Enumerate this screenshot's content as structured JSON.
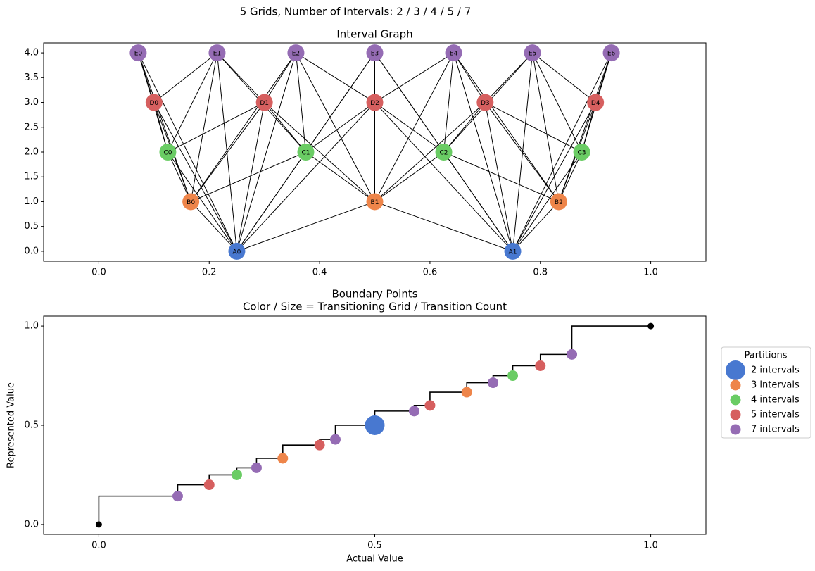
{
  "title": "5 Grids, Number of Intervals: 2 / 3 / 4 / 5 / 7",
  "chart_data": [
    {
      "type": "graph",
      "title": "Interval Graph",
      "xlim": [
        -0.1,
        1.1
      ],
      "xticks": [
        {
          "value": 0,
          "label": "0.0"
        },
        {
          "value": 0.2,
          "label": "0.2"
        },
        {
          "value": 0.4,
          "label": "0.4"
        },
        {
          "value": 0.6,
          "label": "0.6"
        },
        {
          "value": 0.8,
          "label": "0.8"
        },
        {
          "value": 1,
          "label": "1.0"
        }
      ],
      "ylim": [
        -0.2,
        4.2
      ],
      "yticks": [
        {
          "value": 0,
          "label": "0.0"
        },
        0.5,
        {
          "value": 1,
          "label": "1.0"
        },
        1.5,
        {
          "value": 2,
          "label": "2.0"
        },
        2.5,
        {
          "value": 3,
          "label": "3.0"
        },
        3.5,
        {
          "value": 4,
          "label": "4.0"
        }
      ],
      "nodes": [
        {
          "label": "A0",
          "x": 0.25,
          "y": 0,
          "color": "#4878d0"
        },
        {
          "label": "A1",
          "x": 0.75,
          "y": 0,
          "color": "#4878d0"
        },
        {
          "label": "B0",
          "x": 0.1667,
          "y": 1,
          "color": "#ee854a"
        },
        {
          "label": "B1",
          "x": 0.5,
          "y": 1,
          "color": "#ee854a"
        },
        {
          "label": "B2",
          "x": 0.8333,
          "y": 1,
          "color": "#ee854a"
        },
        {
          "label": "C0",
          "x": 0.125,
          "y": 2,
          "color": "#6acc64"
        },
        {
          "label": "C1",
          "x": 0.375,
          "y": 2,
          "color": "#6acc64"
        },
        {
          "label": "C2",
          "x": 0.625,
          "y": 2,
          "color": "#6acc64"
        },
        {
          "label": "C3",
          "x": 0.875,
          "y": 2,
          "color": "#6acc64"
        },
        {
          "label": "D0",
          "x": 0.1,
          "y": 3,
          "color": "#d65f5f"
        },
        {
          "label": "D1",
          "x": 0.3,
          "y": 3,
          "color": "#d65f5f"
        },
        {
          "label": "D2",
          "x": 0.5,
          "y": 3,
          "color": "#d65f5f"
        },
        {
          "label": "D3",
          "x": 0.7,
          "y": 3,
          "color": "#d65f5f"
        },
        {
          "label": "D4",
          "x": 0.9,
          "y": 3,
          "color": "#d65f5f"
        },
        {
          "label": "E0",
          "x": 0.0714,
          "y": 4,
          "color": "#956cb4"
        },
        {
          "label": "E1",
          "x": 0.2143,
          "y": 4,
          "color": "#956cb4"
        },
        {
          "label": "E2",
          "x": 0.3571,
          "y": 4,
          "color": "#956cb4"
        },
        {
          "label": "E3",
          "x": 0.5,
          "y": 4,
          "color": "#956cb4"
        },
        {
          "label": "E4",
          "x": 0.6429,
          "y": 4,
          "color": "#956cb4"
        },
        {
          "label": "E5",
          "x": 0.7857,
          "y": 4,
          "color": "#956cb4"
        },
        {
          "label": "E6",
          "x": 0.9286,
          "y": 4,
          "color": "#956cb4"
        }
      ],
      "edges": [
        [
          "A0",
          "B0"
        ],
        [
          "A0",
          "B1"
        ],
        [
          "A0",
          "C0"
        ],
        [
          "A0",
          "C1"
        ],
        [
          "A0",
          "D0"
        ],
        [
          "A0",
          "D1"
        ],
        [
          "A0",
          "D2"
        ],
        [
          "A0",
          "E0"
        ],
        [
          "A0",
          "E1"
        ],
        [
          "A0",
          "E2"
        ],
        [
          "A0",
          "E3"
        ],
        [
          "A1",
          "B1"
        ],
        [
          "A1",
          "B2"
        ],
        [
          "A1",
          "C2"
        ],
        [
          "A1",
          "C3"
        ],
        [
          "A1",
          "D2"
        ],
        [
          "A1",
          "D3"
        ],
        [
          "A1",
          "D4"
        ],
        [
          "A1",
          "E3"
        ],
        [
          "A1",
          "E4"
        ],
        [
          "A1",
          "E5"
        ],
        [
          "A1",
          "E6"
        ],
        [
          "B0",
          "C0"
        ],
        [
          "B0",
          "C1"
        ],
        [
          "B0",
          "D0"
        ],
        [
          "B0",
          "D1"
        ],
        [
          "B0",
          "E0"
        ],
        [
          "B0",
          "E1"
        ],
        [
          "B0",
          "E2"
        ],
        [
          "B1",
          "C1"
        ],
        [
          "B1",
          "C2"
        ],
        [
          "B1",
          "D1"
        ],
        [
          "B1",
          "D2"
        ],
        [
          "B1",
          "D3"
        ],
        [
          "B1",
          "E2"
        ],
        [
          "B1",
          "E3"
        ],
        [
          "B1",
          "E4"
        ],
        [
          "B2",
          "C2"
        ],
        [
          "B2",
          "C3"
        ],
        [
          "B2",
          "D3"
        ],
        [
          "B2",
          "D4"
        ],
        [
          "B2",
          "E4"
        ],
        [
          "B2",
          "E5"
        ],
        [
          "B2",
          "E6"
        ],
        [
          "C0",
          "D0"
        ],
        [
          "C0",
          "D1"
        ],
        [
          "C0",
          "E0"
        ],
        [
          "C0",
          "E1"
        ],
        [
          "C1",
          "D1"
        ],
        [
          "C1",
          "D2"
        ],
        [
          "C1",
          "E1"
        ],
        [
          "C1",
          "E2"
        ],
        [
          "C1",
          "E3"
        ],
        [
          "C2",
          "D2"
        ],
        [
          "C2",
          "D3"
        ],
        [
          "C2",
          "E3"
        ],
        [
          "C2",
          "E4"
        ],
        [
          "C2",
          "E5"
        ],
        [
          "C3",
          "D3"
        ],
        [
          "C3",
          "D4"
        ],
        [
          "C3",
          "E5"
        ],
        [
          "C3",
          "E6"
        ],
        [
          "D0",
          "E0"
        ],
        [
          "D0",
          "E1"
        ],
        [
          "D1",
          "E1"
        ],
        [
          "D1",
          "E2"
        ],
        [
          "D2",
          "E2"
        ],
        [
          "D2",
          "E3"
        ],
        [
          "D2",
          "E4"
        ],
        [
          "D3",
          "E4"
        ],
        [
          "D3",
          "E5"
        ],
        [
          "D4",
          "E5"
        ],
        [
          "D4",
          "E6"
        ]
      ]
    },
    {
      "type": "scatter",
      "title": "Boundary Points",
      "subtitle": "Color / Size = Transitioning Grid / Transition Count",
      "xlabel": "Actual Value",
      "ylabel": "Represented Value",
      "xlim": [
        -0.1,
        1.1
      ],
      "xticks": [
        {
          "value": 0,
          "label": "0.0"
        },
        0.5,
        {
          "value": 1,
          "label": "1.0"
        }
      ],
      "ylim": [
        -0.05,
        1.05
      ],
      "yticks": [
        {
          "value": 0,
          "label": "0.0"
        },
        0.5,
        {
          "value": 1,
          "label": "1.0"
        }
      ],
      "legend": "outside right",
      "legend_title": "Partitions",
      "series": [
        {
          "style": "step",
          "end_markers": true,
          "color": "#000000",
          "x": [
            0,
            0.1429,
            0.2,
            0.25,
            0.2857,
            0.3333,
            0.4,
            0.4286,
            0.5,
            0.5714,
            0.6,
            0.6667,
            0.7143,
            0.75,
            0.8,
            0.8571,
            1
          ],
          "values": [
            0,
            0.1429,
            0.2,
            0.25,
            0.2857,
            0.3333,
            0.4,
            0.4286,
            0.5,
            0.5714,
            0.6,
            0.6667,
            0.7143,
            0.75,
            0.8,
            0.8571,
            1
          ]
        },
        {
          "name": "2 intervals",
          "color": "#4878d0",
          "x": [
            0.5
          ],
          "values": [
            0.5
          ],
          "sizes": [
            2
          ]
        },
        {
          "name": "3 intervals",
          "color": "#ee854a",
          "x": [
            0.3333,
            0.6667
          ],
          "values": [
            0.3333,
            0.6667
          ],
          "sizes": [
            1,
            1
          ]
        },
        {
          "name": "4 intervals",
          "color": "#6acc64",
          "x": [
            0.25,
            0.75
          ],
          "values": [
            0.25,
            0.75
          ],
          "sizes": [
            1,
            1
          ]
        },
        {
          "name": "5 intervals",
          "color": "#d65f5f",
          "x": [
            0.2,
            0.4,
            0.6,
            0.8
          ],
          "values": [
            0.2,
            0.4,
            0.6,
            0.8
          ],
          "sizes": [
            1,
            1,
            1,
            1
          ]
        },
        {
          "name": "7 intervals",
          "color": "#956cb4",
          "x": [
            0.1429,
            0.2857,
            0.4286,
            0.5714,
            0.7143,
            0.8571
          ],
          "values": [
            0.1429,
            0.2857,
            0.4286,
            0.5714,
            0.7143,
            0.8571
          ],
          "sizes": [
            1,
            1,
            1,
            1,
            1,
            1
          ]
        }
      ]
    }
  ]
}
